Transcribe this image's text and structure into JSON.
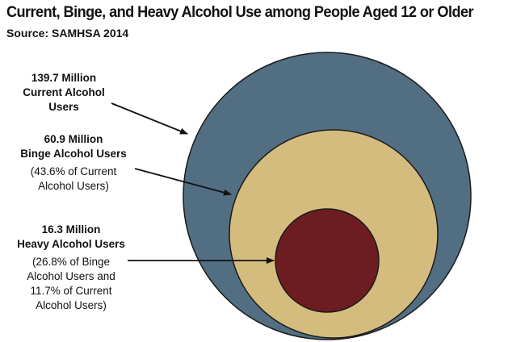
{
  "title": "Current, Binge, and Heavy Alcohol Use among People Aged 12 or Older",
  "source": "Source: SAMHSA 2014",
  "groups": [
    {
      "name": "current",
      "color": "#526e82",
      "lines_bold": [
        "139.7 Million",
        "Current Alcohol",
        "Users"
      ],
      "lines_normal": []
    },
    {
      "name": "binge",
      "color": "#d4bc7e",
      "lines_bold": [
        "60.9 Million",
        "Binge Alcohol Users"
      ],
      "lines_normal": [
        "(43.6% of Current",
        "Alcohol Users)"
      ]
    },
    {
      "name": "heavy",
      "color": "#6d1d22",
      "lines_bold": [
        "16.3 Million",
        "Heavy Alcohol Users"
      ],
      "lines_normal": [
        "(26.8% of Binge",
        "Alcohol Users and",
        "11.7% of Current",
        "Alcohol Users)"
      ]
    }
  ]
}
